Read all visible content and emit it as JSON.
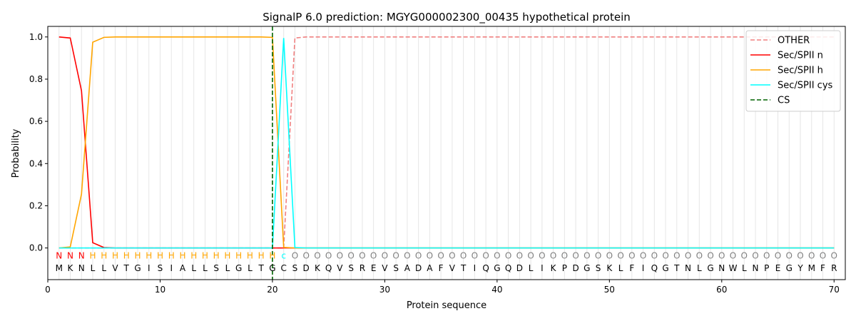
{
  "chart_data": {
    "type": "line",
    "title": "SignalP 6.0 prediction: MGYG000002300_00435 hypothetical protein",
    "xlabel": "Protein sequence",
    "ylabel": "Probability",
    "xlim": [
      0,
      71
    ],
    "ylim": [
      -0.15,
      1.05
    ],
    "xticks": [
      0,
      10,
      20,
      30,
      40,
      50,
      60,
      70
    ],
    "yticks": [
      0.0,
      0.2,
      0.4,
      0.6,
      0.8,
      1.0
    ],
    "legend_position": "top-right",
    "sequence": [
      "M",
      "K",
      "N",
      "L",
      "L",
      "V",
      "T",
      "G",
      "I",
      "S",
      "I",
      "A",
      "L",
      "L",
      "S",
      "L",
      "G",
      "L",
      "T",
      "G",
      "C",
      "S",
      "D",
      "K",
      "Q",
      "V",
      "S",
      "R",
      "E",
      "V",
      "S",
      "A",
      "D",
      "A",
      "F",
      "V",
      "T",
      "I",
      "Q",
      "G",
      "Q",
      "D",
      "L",
      "I",
      "K",
      "P",
      "D",
      "G",
      "S",
      "K",
      "L",
      "F",
      "I",
      "Q",
      "G",
      "T",
      "N",
      "L",
      "G",
      "N",
      "W",
      "L",
      "N",
      "P",
      "E",
      "G",
      "Y",
      "M",
      "F",
      "R"
    ],
    "predicted_labels": [
      "N",
      "N",
      "N",
      "H",
      "H",
      "H",
      "H",
      "H",
      "H",
      "H",
      "H",
      "H",
      "H",
      "H",
      "H",
      "H",
      "H",
      "H",
      "H",
      "H",
      "c",
      "O",
      "O",
      "O",
      "O",
      "O",
      "O",
      "O",
      "O",
      "O",
      "O",
      "O",
      "O",
      "O",
      "O",
      "O",
      "O",
      "O",
      "O",
      "O",
      "O",
      "O",
      "O",
      "O",
      "O",
      "O",
      "O",
      "O",
      "O",
      "O",
      "O",
      "O",
      "O",
      "O",
      "O",
      "O",
      "O",
      "O",
      "O",
      "O",
      "O",
      "O",
      "O",
      "O",
      "O",
      "O",
      "O",
      "O",
      "O",
      "O"
    ],
    "label_colors": {
      "N": "#ff0000",
      "H": "#ffa500",
      "c": "#00ffff",
      "O": "#808080"
    },
    "series": [
      {
        "name": "OTHER",
        "color": "#f08080",
        "dash": "dashed",
        "values": [
          0,
          0,
          0,
          0,
          0,
          0,
          0,
          0,
          0,
          0,
          0,
          0,
          0,
          0,
          0,
          0,
          0,
          0,
          0,
          0,
          0,
          0.995,
          1,
          1,
          1,
          1,
          1,
          1,
          1,
          1,
          1,
          1,
          1,
          1,
          1,
          1,
          1,
          1,
          1,
          1,
          1,
          1,
          1,
          1,
          1,
          1,
          1,
          1,
          1,
          1,
          1,
          1,
          1,
          1,
          1,
          1,
          1,
          1,
          1,
          1,
          1,
          1,
          1,
          1,
          1,
          1,
          1,
          1,
          1,
          1
        ]
      },
      {
        "name": "Sec/SPII n",
        "color": "#ff0000",
        "dash": "solid",
        "values": [
          1.0,
          0.995,
          0.745,
          0.025,
          0.002,
          0,
          0,
          0,
          0,
          0,
          0,
          0,
          0,
          0,
          0,
          0,
          0,
          0,
          0,
          0,
          0,
          0,
          0,
          0,
          0,
          0,
          0,
          0,
          0,
          0,
          0,
          0,
          0,
          0,
          0,
          0,
          0,
          0,
          0,
          0,
          0,
          0,
          0,
          0,
          0,
          0,
          0,
          0,
          0,
          0,
          0,
          0,
          0,
          0,
          0,
          0,
          0,
          0,
          0,
          0,
          0,
          0,
          0,
          0,
          0,
          0,
          0,
          0,
          0,
          0
        ]
      },
      {
        "name": "Sec/SPII h",
        "color": "#ffa500",
        "dash": "solid",
        "values": [
          0,
          0.005,
          0.255,
          0.975,
          0.998,
          1,
          1,
          1,
          1,
          1,
          1,
          1,
          1,
          1,
          1,
          1,
          1,
          1,
          1,
          0.998,
          0.003,
          0,
          0,
          0,
          0,
          0,
          0,
          0,
          0,
          0,
          0,
          0,
          0,
          0,
          0,
          0,
          0,
          0,
          0,
          0,
          0,
          0,
          0,
          0,
          0,
          0,
          0,
          0,
          0,
          0,
          0,
          0,
          0,
          0,
          0,
          0,
          0,
          0,
          0,
          0,
          0,
          0,
          0,
          0,
          0,
          0,
          0,
          0,
          0,
          0
        ]
      },
      {
        "name": "Sec/SPII cys",
        "color": "#00ffff",
        "dash": "solid",
        "values": [
          0,
          0,
          0,
          0,
          0,
          0,
          0,
          0,
          0,
          0,
          0,
          0,
          0,
          0,
          0,
          0,
          0,
          0,
          0,
          0,
          0.995,
          0.002,
          0,
          0,
          0,
          0,
          0,
          0,
          0,
          0,
          0,
          0,
          0,
          0,
          0,
          0,
          0,
          0,
          0,
          0,
          0,
          0,
          0,
          0,
          0,
          0,
          0,
          0,
          0,
          0,
          0,
          0,
          0,
          0,
          0,
          0,
          0,
          0,
          0,
          0,
          0,
          0,
          0,
          0,
          0,
          0,
          0,
          0,
          0,
          0
        ]
      },
      {
        "name": "CS",
        "color": "#006400",
        "dash": "dashed",
        "vertical_x": 20
      }
    ]
  }
}
